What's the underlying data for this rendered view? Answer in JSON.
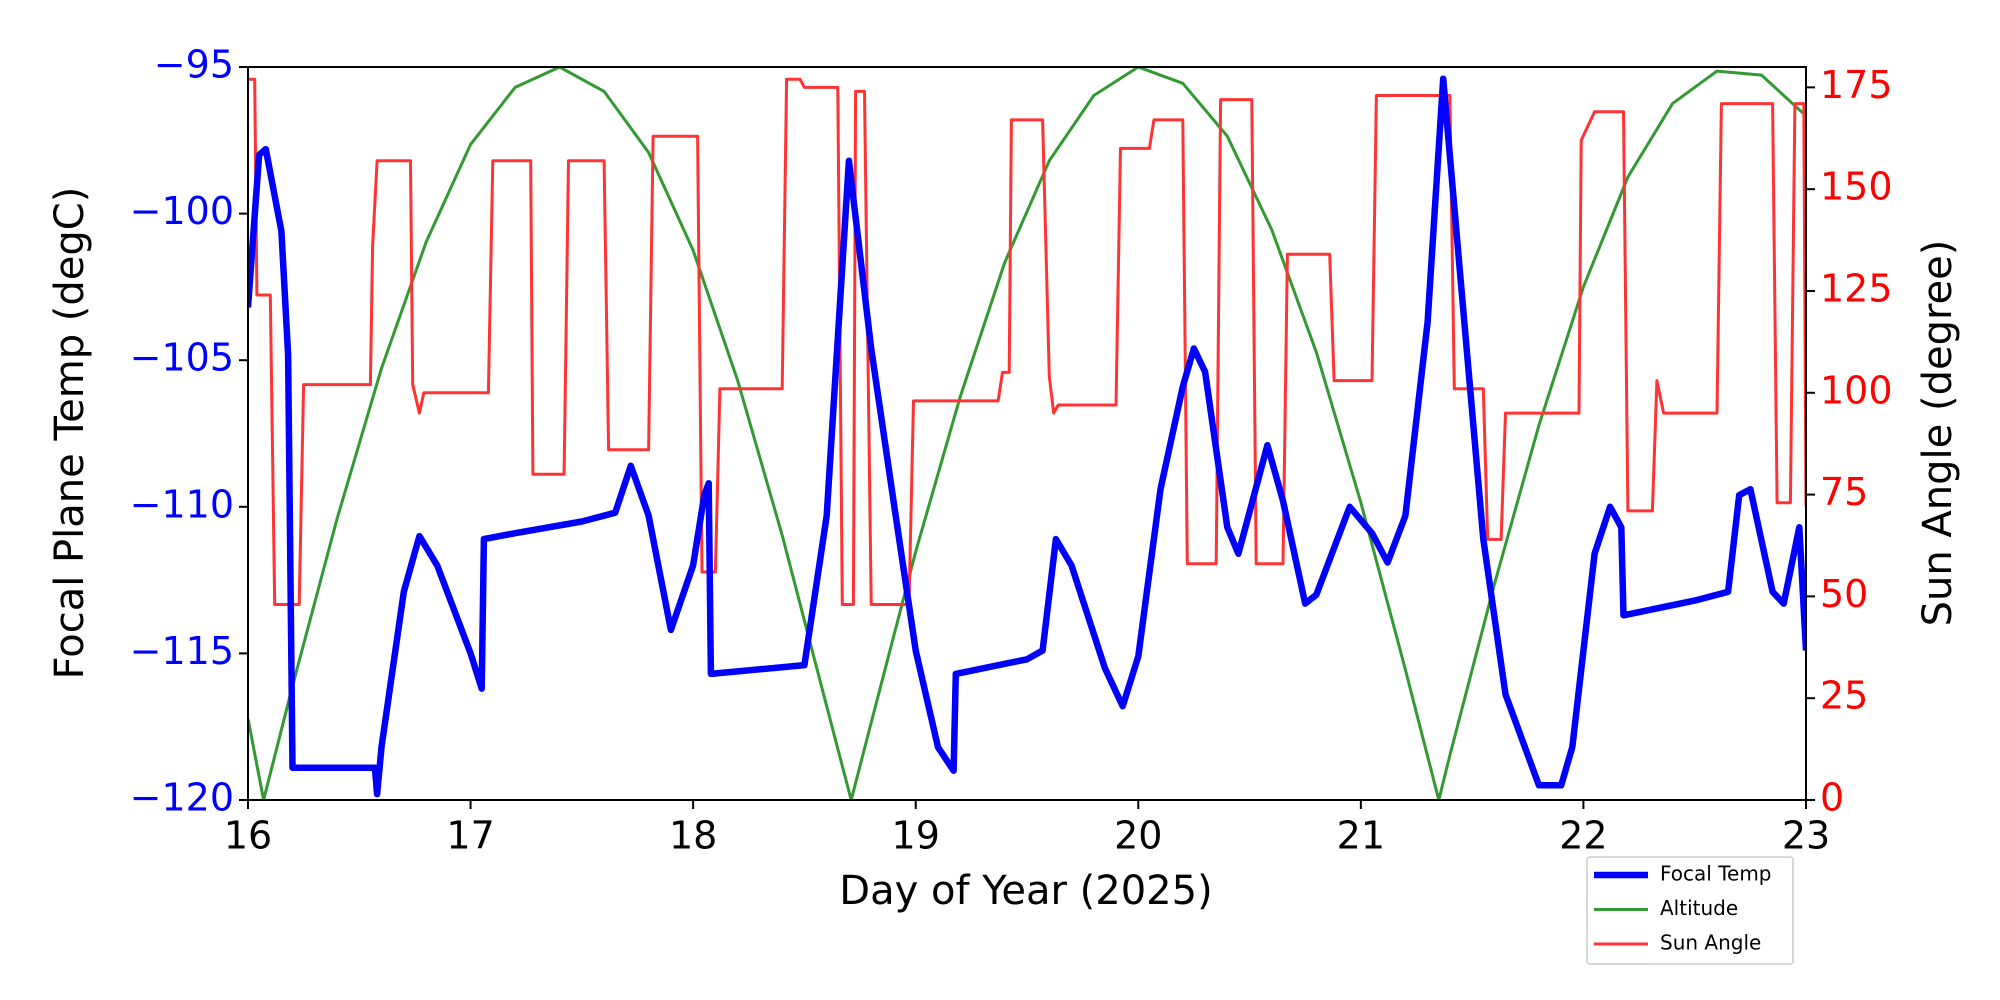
{
  "chart_data": {
    "type": "line",
    "xlabel": "Day of Year (2025)",
    "ylabel": "Focal Plane Temp (degC)",
    "y2label": "Sun Angle (degree)",
    "xlim": [
      16,
      23
    ],
    "xticks": [
      16,
      17,
      18,
      19,
      20,
      21,
      22,
      23
    ],
    "ylim": [
      -120,
      -95
    ],
    "yticks": [
      {
        "value": -120,
        "label": "−120"
      },
      {
        "value": -115,
        "label": "−115"
      },
      {
        "value": -110,
        "label": "−110"
      },
      {
        "value": -105,
        "label": "−105"
      },
      {
        "value": -100,
        "label": "−100"
      },
      {
        "value": -95,
        "label": "−95"
      }
    ],
    "y2lim": [
      0,
      180
    ],
    "y2ticks": [
      0,
      25,
      50,
      75,
      100,
      125,
      150,
      175
    ],
    "ytick_color": "#0000ff",
    "y2tick_color": "#ff0000",
    "grid": false,
    "legend_position": "below-right",
    "series": [
      {
        "name": "Altitude",
        "color": "#339933",
        "width": 3,
        "axis": "y2",
        "x": [
          16.0,
          16.07,
          16.2,
          16.4,
          16.6,
          16.8,
          17.0,
          17.2,
          17.4,
          17.6,
          17.8,
          18.0,
          18.2,
          18.4,
          18.6,
          18.71,
          18.8,
          19.0,
          19.2,
          19.4,
          19.6,
          19.8,
          20.0,
          20.2,
          20.4,
          20.6,
          20.8,
          21.0,
          21.2,
          21.35,
          21.4,
          21.6,
          21.8,
          22.0,
          22.2,
          22.4,
          22.6,
          22.8,
          23.0
        ],
        "values": [
          20,
          0,
          28,
          69,
          106,
          137,
          161,
          175,
          180,
          174,
          159,
          135,
          103,
          65,
          23,
          0,
          19,
          61,
          99,
          132,
          157,
          173,
          180,
          176,
          163,
          140,
          110,
          73,
          32,
          0,
          11,
          53,
          92,
          126,
          153,
          171,
          179,
          178,
          168
        ]
      },
      {
        "name": "Sun Angle",
        "color": "#ff3333",
        "width": 3,
        "axis": "y2",
        "x": [
          16.0,
          16.03,
          16.04,
          16.1,
          16.12,
          16.23,
          16.25,
          16.55,
          16.56,
          16.58,
          16.73,
          16.74,
          16.77,
          16.79,
          17.08,
          17.1,
          17.27,
          17.28,
          17.42,
          17.44,
          17.6,
          17.62,
          17.8,
          17.82,
          18.02,
          18.04,
          18.1,
          18.12,
          18.4,
          18.42,
          18.48,
          18.5,
          18.65,
          18.67,
          18.72,
          18.73,
          18.77,
          18.8,
          18.97,
          18.99,
          19.37,
          19.39,
          19.42,
          19.43,
          19.57,
          19.6,
          19.62,
          19.64,
          19.9,
          19.92,
          20.05,
          20.07,
          20.2,
          20.22,
          20.35,
          20.37,
          20.51,
          20.53,
          20.65,
          20.67,
          20.86,
          20.88,
          21.05,
          21.07,
          21.4,
          21.42,
          21.55,
          21.57,
          21.63,
          21.65,
          21.98,
          21.99,
          22.05,
          22.18,
          22.2,
          22.31,
          22.33,
          22.36,
          22.6,
          22.62,
          22.85,
          22.87,
          22.93,
          22.95,
          22.99,
          23.0
        ],
        "values": [
          177,
          177,
          124,
          124,
          48,
          48,
          102,
          102,
          136,
          157,
          157,
          102,
          95,
          100,
          100,
          157,
          157,
          80,
          80,
          157,
          157,
          86,
          86,
          163,
          163,
          56,
          56,
          101,
          101,
          177,
          177,
          175,
          175,
          48,
          48,
          174,
          174,
          48,
          48,
          98,
          98,
          105,
          105,
          167,
          167,
          104,
          95,
          97,
          97,
          160,
          160,
          167,
          167,
          58,
          58,
          172,
          172,
          58,
          58,
          134,
          134,
          103,
          103,
          173,
          173,
          101,
          101,
          64,
          64,
          95,
          95,
          162,
          169,
          169,
          71,
          71,
          103,
          95,
          95,
          171,
          171,
          73,
          73,
          171,
          171,
          72
        ]
      },
      {
        "name": "Focal Temp",
        "color": "#0000ff",
        "width": 6.5,
        "axis": "y",
        "x": [
          16.0,
          16.05,
          16.08,
          16.15,
          16.18,
          16.2,
          16.57,
          16.58,
          16.6,
          16.7,
          16.77,
          16.85,
          17.0,
          17.05,
          17.06,
          17.2,
          17.5,
          17.65,
          17.72,
          17.8,
          17.9,
          18.0,
          18.05,
          18.07,
          18.08,
          18.5,
          18.6,
          18.7,
          18.8,
          18.9,
          19.0,
          19.1,
          19.17,
          19.18,
          19.5,
          19.57,
          19.63,
          19.7,
          19.85,
          19.93,
          20.0,
          20.1,
          20.2,
          20.25,
          20.3,
          20.4,
          20.45,
          20.58,
          20.65,
          20.75,
          20.8,
          20.95,
          21.05,
          21.12,
          21.2,
          21.3,
          21.37,
          21.45,
          21.55,
          21.65,
          21.8,
          21.9,
          21.95,
          22.05,
          22.12,
          22.17,
          22.18,
          22.5,
          22.65,
          22.7,
          22.75,
          22.85,
          22.9,
          22.97,
          23.0
        ],
        "values": [
          -103.2,
          -98.0,
          -97.8,
          -100.6,
          -104.8,
          -118.9,
          -118.9,
          -119.8,
          -118.2,
          -112.9,
          -111.0,
          -112.0,
          -115.0,
          -116.2,
          -111.1,
          -110.9,
          -110.5,
          -110.2,
          -108.6,
          -110.3,
          -114.2,
          -112.0,
          -109.6,
          -109.2,
          -115.7,
          -115.4,
          -110.3,
          -98.2,
          -104.6,
          -109.8,
          -114.9,
          -118.2,
          -119.0,
          -115.7,
          -115.2,
          -114.9,
          -111.1,
          -112.0,
          -115.5,
          -116.8,
          -115.1,
          -109.4,
          -105.9,
          -104.6,
          -105.4,
          -110.7,
          -111.6,
          -107.9,
          -109.8,
          -113.3,
          -113.0,
          -110.0,
          -110.9,
          -111.9,
          -110.3,
          -103.7,
          -95.4,
          -102.4,
          -111.1,
          -116.4,
          -119.5,
          -119.5,
          -118.2,
          -111.6,
          -110.0,
          -110.7,
          -113.7,
          -113.2,
          -112.9,
          -109.6,
          -109.4,
          -112.9,
          -113.3,
          -110.7,
          -114.9
        ]
      }
    ],
    "legend_order": [
      2,
      0,
      1
    ]
  }
}
